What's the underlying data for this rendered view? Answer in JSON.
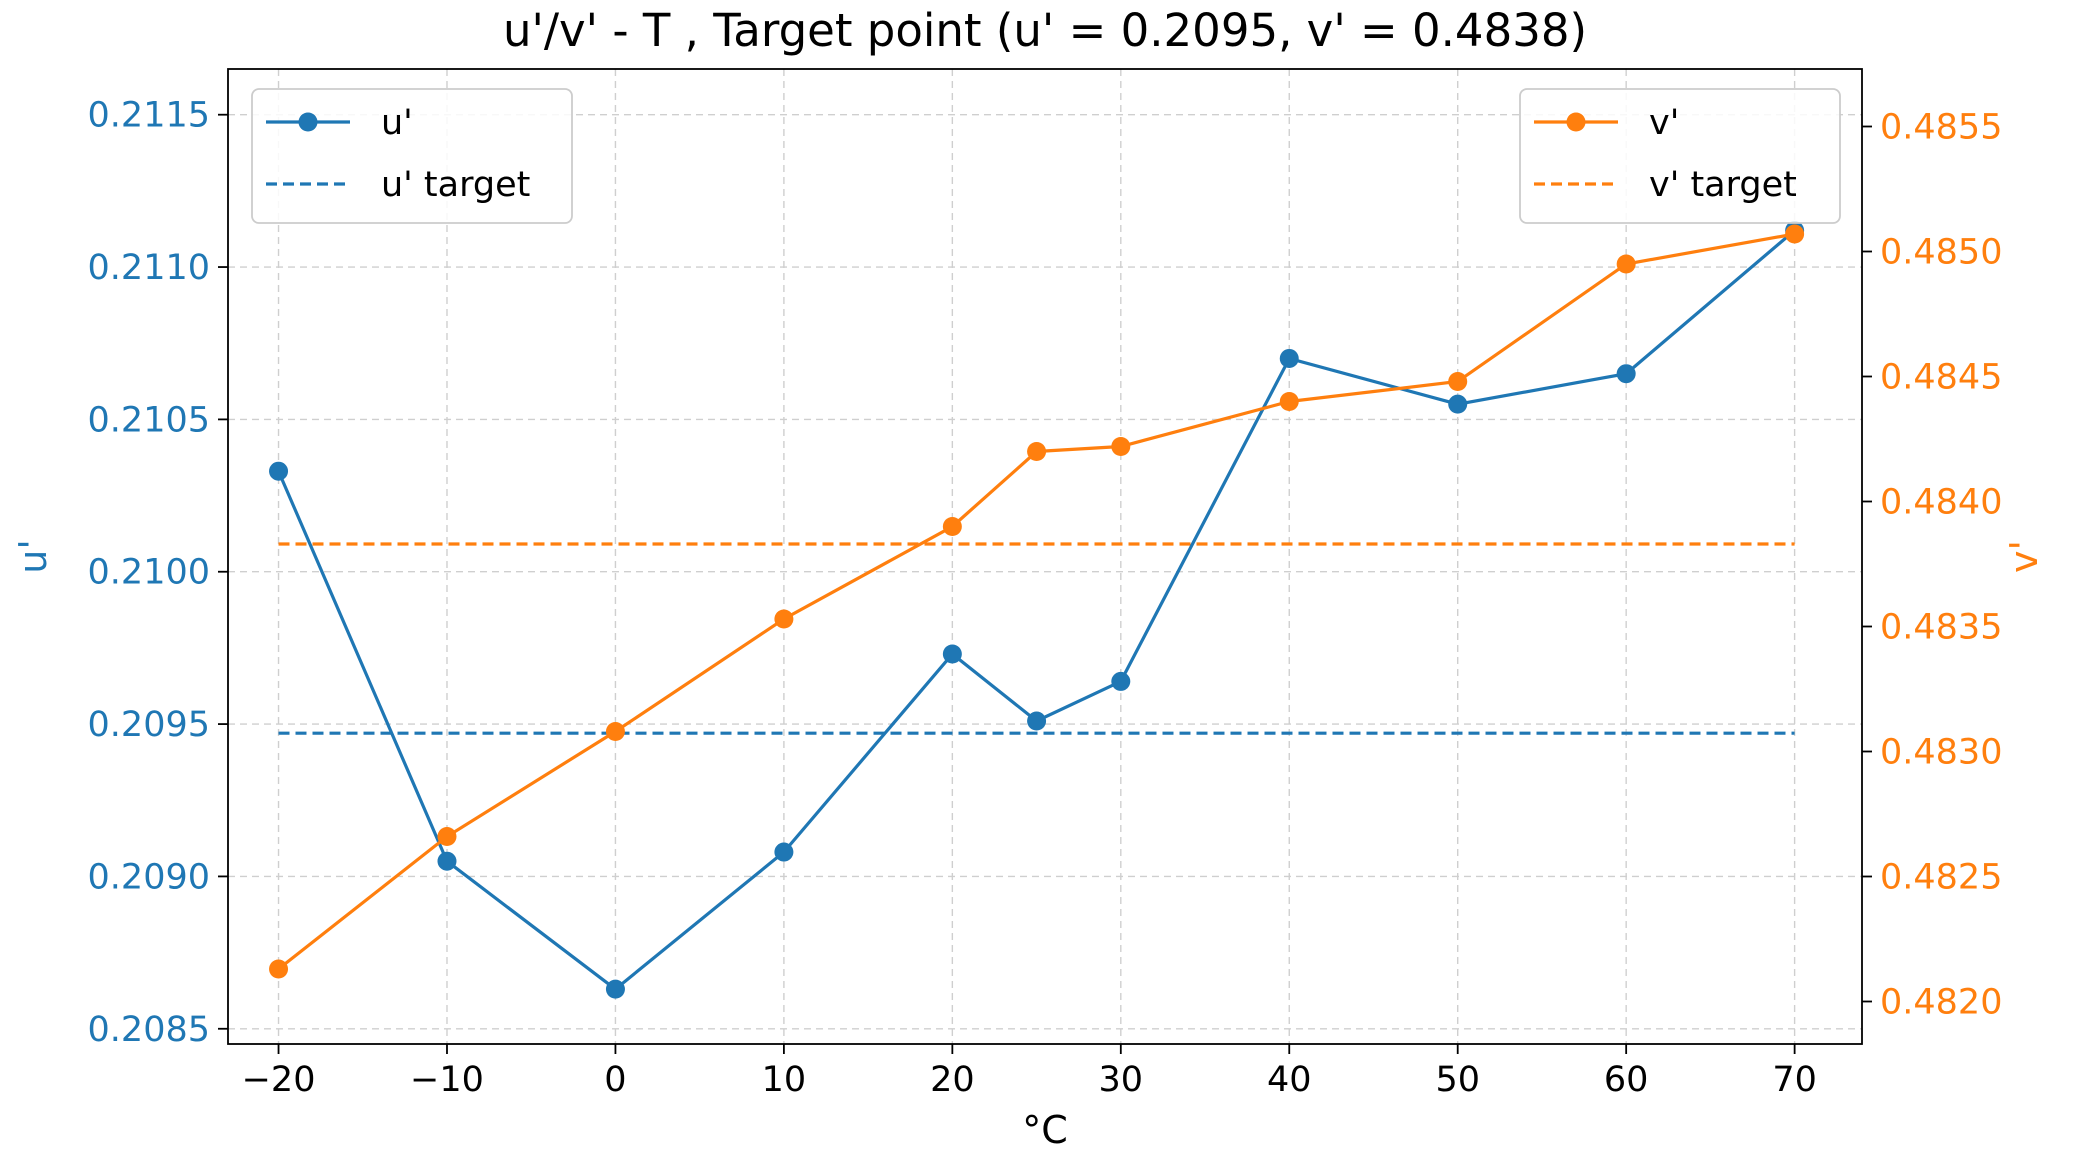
{
  "chart_data": {
    "type": "line",
    "title": "u'/v' - T ,  Target point (u' = 0.2095, v' = 0.4838)",
    "xlabel": "°C",
    "ylabel_left": "u'",
    "ylabel_right": "v'",
    "x": [
      -20,
      -10,
      0,
      10,
      20,
      25,
      30,
      40,
      50,
      60,
      70
    ],
    "xlim": [
      -23,
      74
    ],
    "xticks": [
      -20,
      -10,
      0,
      10,
      20,
      30,
      40,
      50,
      60,
      70
    ],
    "xtick_labels": [
      "−20",
      "−10",
      "0",
      "10",
      "20",
      "30",
      "40",
      "50",
      "60",
      "70"
    ],
    "ylim_left": [
      0.20845,
      0.21165
    ],
    "yticks_left": [
      "0.2085",
      "0.2090",
      "0.2095",
      "0.2100",
      "0.2105",
      "0.2110",
      "0.2115"
    ],
    "ylim_right": [
      0.48183,
      0.48573
    ],
    "yticks_right": [
      "0.4820",
      "0.4825",
      "0.4830",
      "0.4835",
      "0.4840",
      "0.4845",
      "0.4850",
      "0.4855"
    ],
    "grid": true,
    "series": [
      {
        "name": "u'",
        "axis": "left",
        "color": "#1f77b4",
        "style": "solid-marker",
        "values": [
          0.21033,
          0.20905,
          0.20863,
          0.20908,
          0.20973,
          0.20951,
          0.20964,
          0.2107,
          0.21055,
          0.21065,
          0.21112
        ]
      },
      {
        "name": "u' target",
        "axis": "left",
        "color": "#1f77b4",
        "style": "dashed",
        "x": [
          -20,
          70
        ],
        "values": [
          0.20947,
          0.20947
        ]
      },
      {
        "name": "v'",
        "axis": "right",
        "color": "#ff7f0e",
        "style": "solid-marker",
        "values": [
          0.48213,
          0.48266,
          0.48308,
          0.48353,
          0.4839,
          0.4842,
          0.48422,
          0.4844,
          0.48448,
          0.48495,
          0.48507
        ]
      },
      {
        "name": "v' target",
        "axis": "right",
        "color": "#ff7f0e",
        "style": "dashed",
        "x": [
          -20,
          70
        ],
        "values": [
          0.48383,
          0.48383
        ]
      }
    ],
    "legend_left": {
      "placement": "upper-left",
      "entries": [
        {
          "label": "u'",
          "color": "#1f77b4",
          "style": "solid-marker"
        },
        {
          "label": "u' target",
          "color": "#1f77b4",
          "style": "dashed"
        }
      ]
    },
    "legend_right": {
      "placement": "upper-right",
      "entries": [
        {
          "label": "v'",
          "color": "#ff7f0e",
          "style": "solid-marker"
        },
        {
          "label": "v' target",
          "color": "#ff7f0e",
          "style": "dashed"
        }
      ]
    }
  }
}
